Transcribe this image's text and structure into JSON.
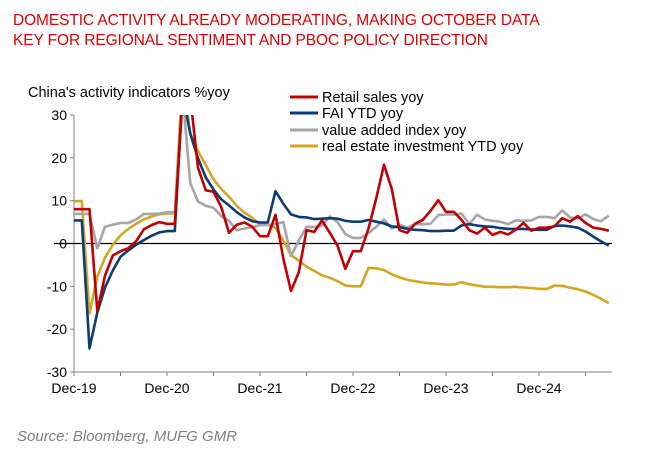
{
  "title_lines": [
    "DOMESTIC ACTIVITY ALREADY MODERATING, MAKING OCTOBER DATA",
    "KEY FOR REGIONAL SENTIMENT AND PBOC POLICY DIRECTION"
  ],
  "source": "Source: Bloomberg, MUFG GMR",
  "colors": {
    "title": "#e00000",
    "retail": "#c00000",
    "fai": "#0b3c73",
    "value_added": "#a6a6a6",
    "real_estate": "#d4a626"
  },
  "chart_data": {
    "type": "line",
    "ylabel": "China's activity indicators %yoy",
    "ylim": [
      -30,
      30
    ],
    "yticks": [
      -30,
      -20,
      -10,
      0,
      10,
      20,
      30
    ],
    "xlim": [
      "2019-12",
      "2025-09"
    ],
    "xtick_labels": [
      "Dec-19",
      "Dec-20",
      "Dec-21",
      "Dec-22",
      "Dec-23",
      "Dec-24"
    ],
    "grid": false,
    "legend": "top-right",
    "x": [
      "2019-12",
      "2020-01",
      "2020-02",
      "2020-03",
      "2020-04",
      "2020-05",
      "2020-06",
      "2020-07",
      "2020-08",
      "2020-09",
      "2020-10",
      "2020-11",
      "2020-12",
      "2021-01",
      "2021-02",
      "2021-03",
      "2021-04",
      "2021-05",
      "2021-06",
      "2021-07",
      "2021-08",
      "2021-09",
      "2021-10",
      "2021-11",
      "2021-12",
      "2022-01",
      "2022-02",
      "2022-03",
      "2022-04",
      "2022-05",
      "2022-06",
      "2022-07",
      "2022-08",
      "2022-09",
      "2022-10",
      "2022-11",
      "2022-12",
      "2023-01",
      "2023-02",
      "2023-03",
      "2023-04",
      "2023-05",
      "2023-06",
      "2023-07",
      "2023-08",
      "2023-09",
      "2023-10",
      "2023-11",
      "2023-12",
      "2024-01",
      "2024-02",
      "2024-03",
      "2024-04",
      "2024-05",
      "2024-06",
      "2024-07",
      "2024-08",
      "2024-09",
      "2024-10",
      "2024-11",
      "2024-12",
      "2025-01",
      "2025-02",
      "2025-03",
      "2025-04",
      "2025-05",
      "2025-06",
      "2025-07",
      "2025-08",
      "2025-09"
    ],
    "series": [
      {
        "name": "Retail sales yoy",
        "color": "#c00000",
        "values": [
          8.0,
          8.0,
          8.0,
          -15.8,
          -7.5,
          -2.8,
          -1.8,
          -1.1,
          0.5,
          3.3,
          4.3,
          5.0,
          4.6,
          4.6,
          33.8,
          34.2,
          17.7,
          12.4,
          12.1,
          8.5,
          2.5,
          4.4,
          4.9,
          3.9,
          1.7,
          1.7,
          6.7,
          -3.5,
          -11.1,
          -6.7,
          3.1,
          2.7,
          5.4,
          2.5,
          -0.5,
          -5.9,
          -1.8,
          -1.8,
          3.5,
          10.6,
          18.4,
          12.7,
          3.1,
          2.5,
          4.6,
          5.5,
          7.6,
          10.1,
          7.4,
          7.4,
          5.5,
          3.1,
          2.3,
          3.7,
          2.0,
          2.7,
          2.1,
          3.2,
          4.8,
          3.0,
          3.7,
          3.7,
          4.0,
          5.9,
          5.1,
          6.4,
          4.8,
          3.7,
          3.4,
          3.0
        ]
      },
      {
        "name": "FAI YTD yoy",
        "color": "#0b3c73",
        "values": [
          5.4,
          5.4,
          -24.5,
          -16.1,
          -10.3,
          -6.3,
          -3.1,
          -1.6,
          -0.3,
          0.8,
          1.8,
          2.6,
          2.9,
          2.9,
          35.0,
          25.6,
          19.9,
          15.4,
          12.6,
          10.3,
          8.9,
          7.3,
          6.1,
          5.2,
          4.9,
          4.9,
          12.2,
          9.3,
          6.8,
          6.2,
          6.1,
          5.7,
          5.8,
          5.9,
          5.8,
          5.3,
          5.1,
          5.1,
          5.5,
          5.1,
          4.7,
          4.0,
          3.8,
          3.4,
          3.2,
          3.1,
          2.9,
          2.9,
          3.0,
          3.0,
          4.2,
          4.5,
          4.2,
          4.0,
          3.9,
          3.6,
          3.4,
          3.4,
          3.4,
          3.3,
          3.2,
          3.2,
          4.1,
          4.2,
          4.0,
          3.7,
          2.8,
          1.6,
          0.5,
          -0.5
        ]
      },
      {
        "name": "value added index yoy",
        "color": "#a6a6a6",
        "values": [
          6.9,
          6.9,
          6.9,
          -1.1,
          3.9,
          4.4,
          4.8,
          4.8,
          5.6,
          6.9,
          6.9,
          7.0,
          7.3,
          7.3,
          35.1,
          14.1,
          9.8,
          8.8,
          8.3,
          6.4,
          5.3,
          3.1,
          3.5,
          3.8,
          4.3,
          4.3,
          4.5,
          5.0,
          -2.9,
          0.7,
          3.9,
          3.8,
          4.2,
          6.3,
          5.0,
          2.2,
          1.3,
          1.3,
          2.4,
          3.9,
          5.6,
          3.5,
          4.4,
          3.7,
          4.5,
          4.5,
          4.6,
          6.6,
          6.8,
          6.8,
          7.0,
          4.5,
          6.7,
          5.6,
          5.3,
          5.1,
          4.5,
          5.4,
          5.3,
          5.4,
          6.2,
          6.2,
          5.9,
          7.7,
          6.1,
          5.8,
          6.8,
          5.7,
          5.2,
          6.5
        ]
      },
      {
        "name": "real estate investment YTD yoy",
        "color": "#d4a626",
        "values": [
          9.9,
          9.9,
          -16.3,
          -7.7,
          -3.3,
          -0.3,
          1.9,
          3.4,
          4.6,
          5.6,
          6.3,
          6.8,
          7.0,
          7.0,
          38.3,
          25.6,
          21.6,
          18.3,
          15.0,
          12.7,
          10.9,
          8.8,
          7.2,
          6.0,
          4.4,
          4.4,
          3.7,
          0.7,
          -2.7,
          -4.0,
          -5.4,
          -6.4,
          -7.4,
          -8.0,
          -8.8,
          -9.8,
          -10.0,
          -10.0,
          -5.7,
          -5.8,
          -6.2,
          -7.2,
          -7.9,
          -8.5,
          -8.8,
          -9.1,
          -9.3,
          -9.4,
          -9.6,
          -9.6,
          -9.0,
          -9.5,
          -9.8,
          -10.1,
          -10.1,
          -10.2,
          -10.2,
          -10.1,
          -10.3,
          -10.4,
          -10.6,
          -10.6,
          -9.8,
          -9.9,
          -10.3,
          -10.7,
          -11.2,
          -12.0,
          -12.9,
          -13.9
        ]
      }
    ]
  }
}
